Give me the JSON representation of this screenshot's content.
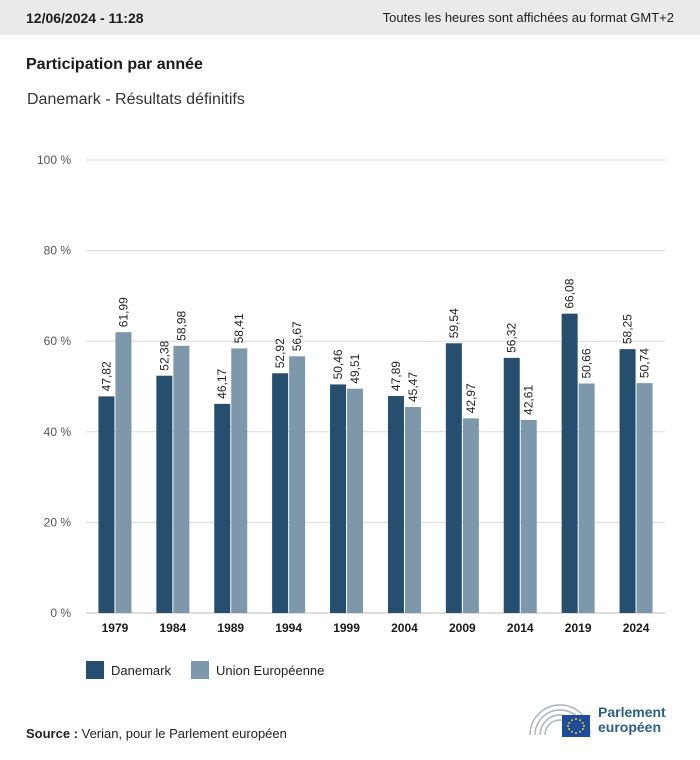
{
  "header": {
    "date": "12/06/2024 - 11:28",
    "timezone_note": "Toutes les heures sont affichées au format GMT+2"
  },
  "title": "Participation par année",
  "subtitle": "Danemark - Résultats définitifs",
  "colors": {
    "danemark": "#264e6e",
    "ue": "#7d97ab",
    "grid": "#dcdcdc",
    "logo": "#2b5f86",
    "eu_flag": "#1e4b9a"
  },
  "chart_data": {
    "type": "bar",
    "categories": [
      "1979",
      "1984",
      "1989",
      "1994",
      "1999",
      "2004",
      "2009",
      "2014",
      "2019",
      "2024"
    ],
    "series": [
      {
        "name": "Danemark",
        "values": [
          47.82,
          52.38,
          46.17,
          52.92,
          50.46,
          47.89,
          59.54,
          56.32,
          66.08,
          58.25
        ],
        "labels": [
          "47,82",
          "52,38",
          "46,17",
          "52,92",
          "50,46",
          "47,89",
          "59,54",
          "56,32",
          "66,08",
          "58,25"
        ]
      },
      {
        "name": "Union Européenne",
        "values": [
          61.99,
          58.98,
          58.41,
          56.67,
          49.51,
          45.47,
          42.97,
          42.61,
          50.66,
          50.74
        ],
        "labels": [
          "61,99",
          "58,98",
          "58,41",
          "56,67",
          "49,51",
          "45,47",
          "42,97",
          "42,61",
          "50,66",
          "50,74"
        ]
      }
    ],
    "yticks": [
      "0 %",
      "20 %",
      "40 %",
      "60 %",
      "80 %",
      "100 %"
    ],
    "ylim": [
      0,
      100
    ],
    "grid": true,
    "legend_position": "bottom-left"
  },
  "legend": {
    "danemark": "Danemark",
    "ue": "Union Européenne"
  },
  "source": {
    "label": "Source :",
    "text": " Verian, pour le Parlement européen"
  },
  "logo": {
    "line1": "Parlement",
    "line2": "européen",
    "icon": "parliament-hemicycle-icon"
  }
}
